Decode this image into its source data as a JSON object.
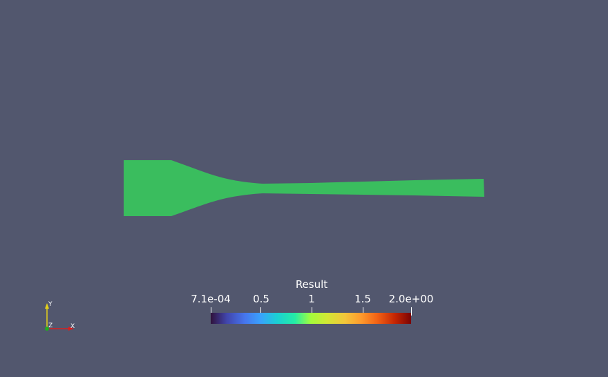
{
  "scene": {
    "background": "#52576e",
    "mesh_color": "#3abd5e"
  },
  "colorbar": {
    "title": "Result",
    "min_label": "7.1e-04",
    "max_label": "2.0e+00",
    "tick_labels": [
      "7.1e-04",
      "0.5",
      "1",
      "1.5",
      "2.0e+00"
    ],
    "tick_values": [
      0.00071,
      0.5,
      1.0,
      1.5,
      2.0
    ],
    "range": [
      0.00071,
      2.0
    ],
    "colormap": "turbo"
  },
  "orientation_axes": {
    "x_label": "X",
    "y_label": "Y",
    "z_label": "Z",
    "x_color": "#d62020",
    "y_color": "#e6d21a",
    "z_color": "#22aa22"
  }
}
